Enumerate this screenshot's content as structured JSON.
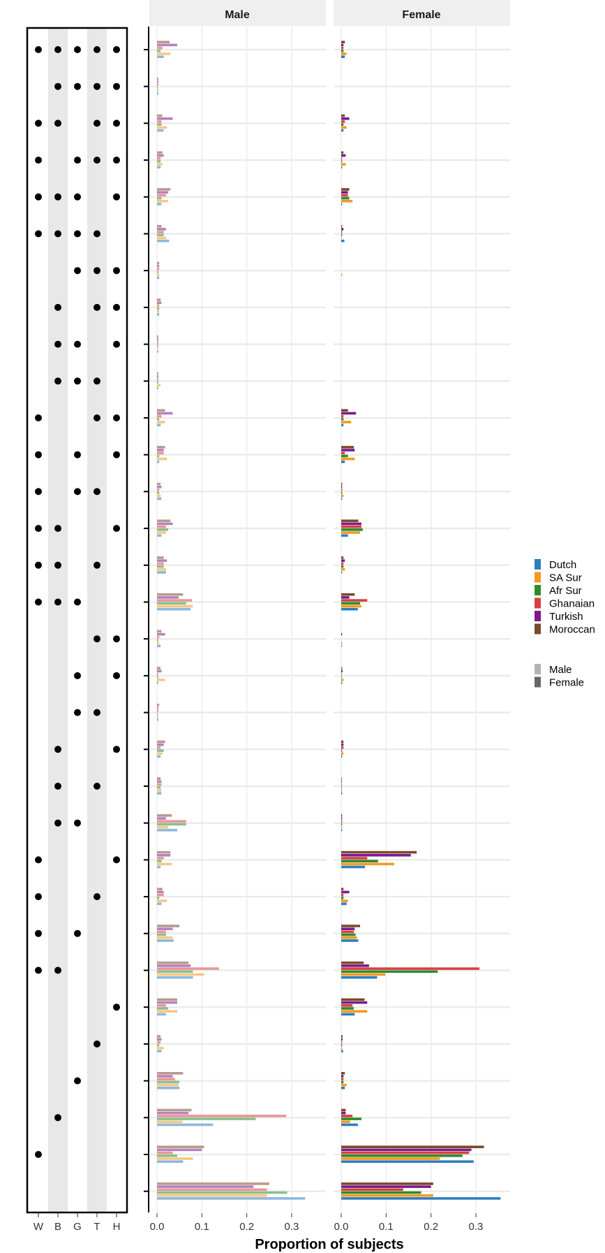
{
  "chart_data": {
    "type": "bar",
    "orientation": "horizontal",
    "xlabel": "Proportion of subjects",
    "xlim": [
      0,
      0.37
    ],
    "xticks": [
      "0.0",
      "0.1",
      "0.2",
      "0.3"
    ],
    "xtick_values": [
      0,
      0.1,
      0.2,
      0.3
    ],
    "panels": [
      "Male",
      "Female"
    ],
    "matrix_columns": [
      "W",
      "B",
      "G",
      "T",
      "H"
    ],
    "groups": [
      "Dutch",
      "SA Sur",
      "Afr Sur",
      "Ghanaian",
      "Turkish",
      "Moroccan"
    ],
    "group_colors": [
      "#2e7fc1",
      "#f29a1f",
      "#2e8b2e",
      "#d94040",
      "#7b1a8c",
      "#7a4a2a"
    ],
    "legend_sex": [
      "Male",
      "Female"
    ],
    "legend_sex_colors": [
      "#b3b3b3",
      "#666666"
    ],
    "combinations": [
      "WBGTH",
      "BGTH",
      "WBTH",
      "WGTH",
      "WBGH",
      "WBGT",
      "GTH",
      "BTH",
      "BGH",
      "BGT",
      "WTH",
      "WGH",
      "WGT",
      "WBH",
      "WBT",
      "WBG",
      "TH",
      "GH",
      "GT",
      "BH",
      "BT",
      "BG",
      "WH",
      "WT",
      "WG",
      "WB",
      "H",
      "T",
      "G",
      "B",
      "W",
      "None"
    ],
    "series": [
      {
        "panel": "Male",
        "name": "Dutch",
        "values": [
          0.015,
          0.003,
          0.015,
          0.008,
          0.01,
          0.027,
          0.005,
          0.005,
          0.003,
          0.003,
          0.008,
          0.005,
          0.01,
          0.01,
          0.02,
          0.075,
          0.008,
          0.003,
          0.003,
          0.008,
          0.01,
          0.045,
          0.008,
          0.01,
          0.037,
          0.08,
          0.02,
          0.01,
          0.05,
          0.125,
          0.058,
          0.33
        ]
      },
      {
        "panel": "Male",
        "name": "SA Sur",
        "values": [
          0.03,
          0.003,
          0.022,
          0.012,
          0.025,
          0.02,
          0.005,
          0.005,
          0.003,
          0.008,
          0.018,
          0.022,
          0.008,
          0.02,
          0.02,
          0.08,
          0.005,
          0.018,
          0.003,
          0.012,
          0.01,
          0.025,
          0.033,
          0.022,
          0.035,
          0.105,
          0.045,
          0.015,
          0.048,
          0.057,
          0.08,
          0.245
        ]
      },
      {
        "panel": "Male",
        "name": "Afr Sur",
        "values": [
          0.008,
          0.002,
          0.01,
          0.008,
          0.01,
          0.015,
          0.003,
          0.005,
          0.003,
          0.003,
          0.005,
          0.005,
          0.005,
          0.025,
          0.015,
          0.065,
          0.003,
          0.003,
          0.002,
          0.015,
          0.008,
          0.065,
          0.01,
          0.005,
          0.02,
          0.08,
          0.025,
          0.005,
          0.05,
          0.22,
          0.045,
          0.29
        ]
      },
      {
        "panel": "Male",
        "name": "Ghanaian",
        "values": [
          0.012,
          0.003,
          0.01,
          0.008,
          0.02,
          0.015,
          0.005,
          0.005,
          0.003,
          0.003,
          0.01,
          0.015,
          0.005,
          0.02,
          0.015,
          0.078,
          0.005,
          0.003,
          0.003,
          0.008,
          0.01,
          0.065,
          0.015,
          0.015,
          0.02,
          0.138,
          0.02,
          0.008,
          0.04,
          0.288,
          0.035,
          0.245
        ]
      },
      {
        "panel": "Male",
        "name": "Turkish",
        "values": [
          0.045,
          0.003,
          0.035,
          0.015,
          0.025,
          0.02,
          0.005,
          0.01,
          0.003,
          0.003,
          0.035,
          0.015,
          0.01,
          0.035,
          0.022,
          0.048,
          0.018,
          0.01,
          0.003,
          0.015,
          0.01,
          0.02,
          0.03,
          0.015,
          0.035,
          0.075,
          0.045,
          0.01,
          0.035,
          0.07,
          0.1,
          0.215
        ]
      },
      {
        "panel": "Male",
        "name": "Moroccan",
        "values": [
          0.028,
          0.003,
          0.012,
          0.012,
          0.03,
          0.01,
          0.005,
          0.008,
          0.003,
          0.003,
          0.018,
          0.018,
          0.008,
          0.03,
          0.015,
          0.058,
          0.01,
          0.008,
          0.005,
          0.018,
          0.008,
          0.033,
          0.03,
          0.012,
          0.05,
          0.07,
          0.045,
          0.008,
          0.058,
          0.077,
          0.105,
          0.25
        ]
      },
      {
        "panel": "Female",
        "name": "Dutch",
        "values": [
          0.008,
          0,
          0.005,
          0.002,
          0.002,
          0.007,
          0,
          0,
          0,
          0,
          0.005,
          0.008,
          0.002,
          0.015,
          0.002,
          0.037,
          0.001,
          0.002,
          0,
          0.002,
          0.002,
          0.002,
          0.053,
          0.012,
          0.038,
          0.08,
          0.03,
          0.004,
          0.008,
          0.037,
          0.295,
          0.355
        ]
      },
      {
        "panel": "Female",
        "name": "SA Sur",
        "values": [
          0.012,
          0,
          0.012,
          0.01,
          0.025,
          0.001,
          0.002,
          0,
          0,
          0,
          0.022,
          0.03,
          0.005,
          0.042,
          0.008,
          0.045,
          0.002,
          0.005,
          0,
          0.005,
          0.002,
          0.002,
          0.118,
          0.015,
          0.035,
          0.098,
          0.058,
          0.002,
          0.012,
          0.02,
          0.22,
          0.205
        ]
      },
      {
        "panel": "Female",
        "name": "Afr Sur",
        "values": [
          0.005,
          0,
          0.005,
          0.002,
          0.018,
          0.002,
          0,
          0,
          0,
          0,
          0.005,
          0.015,
          0.002,
          0.048,
          0.005,
          0.042,
          0,
          0.001,
          0,
          0.002,
          0.001,
          0.002,
          0.082,
          0.005,
          0.032,
          0.215,
          0.028,
          0.002,
          0.005,
          0.045,
          0.27,
          0.178
        ]
      },
      {
        "panel": "Female",
        "name": "Ghanaian",
        "values": [
          0.005,
          0,
          0.008,
          0.002,
          0.015,
          0.002,
          0,
          0,
          0,
          0,
          0.005,
          0.008,
          0.002,
          0.045,
          0.005,
          0.058,
          0,
          0.001,
          0,
          0.005,
          0.001,
          0.002,
          0.058,
          0.005,
          0.028,
          0.308,
          0.025,
          0.002,
          0.005,
          0.025,
          0.285,
          0.138
        ]
      },
      {
        "panel": "Female",
        "name": "Turkish",
        "values": [
          0.005,
          0,
          0.018,
          0.01,
          0.015,
          0.005,
          0,
          0,
          0,
          0,
          0.033,
          0.03,
          0.002,
          0.045,
          0.008,
          0.018,
          0.002,
          0.003,
          0,
          0.005,
          0.001,
          0.002,
          0.155,
          0.018,
          0.03,
          0.062,
          0.058,
          0.003,
          0.005,
          0.01,
          0.29,
          0.2
        ]
      },
      {
        "panel": "Female",
        "name": "Moroccan",
        "values": [
          0.008,
          0,
          0.008,
          0.005,
          0.018,
          0.002,
          0,
          0,
          0,
          0,
          0.015,
          0.028,
          0.002,
          0.038,
          0.005,
          0.03,
          0,
          0.002,
          0,
          0.005,
          0.001,
          0.002,
          0.168,
          0.005,
          0.042,
          0.05,
          0.052,
          0.003,
          0.008,
          0.01,
          0.318,
          0.205
        ]
      }
    ]
  }
}
